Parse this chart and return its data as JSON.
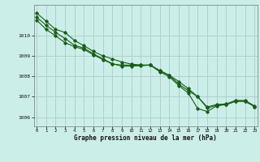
{
  "title": "Graphe pression niveau de la mer (hPa)",
  "background_color": "#cceee8",
  "line_color": "#1a5c1a",
  "grid_color": "#aacccc",
  "xlim": [
    -0.3,
    23.3
  ],
  "ylim": [
    1005.55,
    1011.5
  ],
  "yticks": [
    1006,
    1007,
    1008,
    1009,
    1010
  ],
  "xticks": [
    0,
    1,
    2,
    3,
    4,
    5,
    6,
    7,
    8,
    9,
    10,
    11,
    12,
    13,
    14,
    15,
    16,
    17,
    18,
    19,
    20,
    21,
    22,
    23
  ],
  "series": [
    [
      1011.1,
      1010.7,
      1010.3,
      1010.15,
      1009.75,
      1009.5,
      1009.22,
      1009.0,
      1008.85,
      1008.7,
      1008.6,
      1008.55,
      1008.55,
      1008.28,
      1008.05,
      1007.75,
      1007.4,
      1007.0,
      1006.5,
      1006.62,
      1006.65,
      1006.82,
      1006.82,
      1006.55
    ],
    [
      1010.9,
      1010.5,
      1010.15,
      1009.85,
      1009.52,
      1009.38,
      1009.1,
      1008.85,
      1008.62,
      1008.5,
      1008.5,
      1008.52,
      1008.55,
      1008.28,
      1008.05,
      1007.62,
      1007.3,
      1007.0,
      1006.45,
      1006.58,
      1006.62,
      1006.78,
      1006.78,
      1006.52
    ],
    [
      1010.75,
      1010.3,
      1009.98,
      1009.65,
      1009.45,
      1009.32,
      1009.05,
      1008.82,
      1008.6,
      1008.55,
      1008.55,
      1008.55,
      1008.55,
      1008.22,
      1007.98,
      1007.55,
      1007.18,
      1006.42,
      1006.28,
      1006.55,
      1006.62,
      1006.78,
      1006.78,
      1006.52
    ]
  ]
}
